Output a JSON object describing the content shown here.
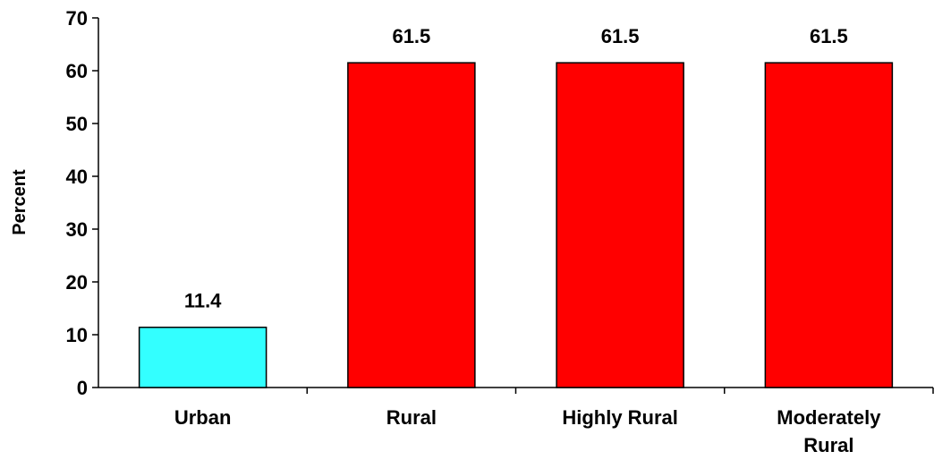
{
  "chart_data": {
    "type": "bar",
    "title": "",
    "xlabel": "",
    "ylabel": "Percent",
    "ylim": [
      0,
      70
    ],
    "yticks": [
      0,
      10,
      20,
      30,
      40,
      50,
      60,
      70
    ],
    "grid": false,
    "legend": "none",
    "categories": [
      [
        "Urban"
      ],
      [
        "Rural"
      ],
      [
        "Highly Rural"
      ],
      [
        "Moderately",
        "Rural"
      ]
    ],
    "values": [
      11.4,
      61.5,
      61.5,
      61.5
    ],
    "data_labels": [
      "11.4",
      "61.5",
      "61.5",
      "61.5"
    ],
    "colors": [
      "#33ffff",
      "#ff0000",
      "#ff0000",
      "#ff0000"
    ]
  }
}
